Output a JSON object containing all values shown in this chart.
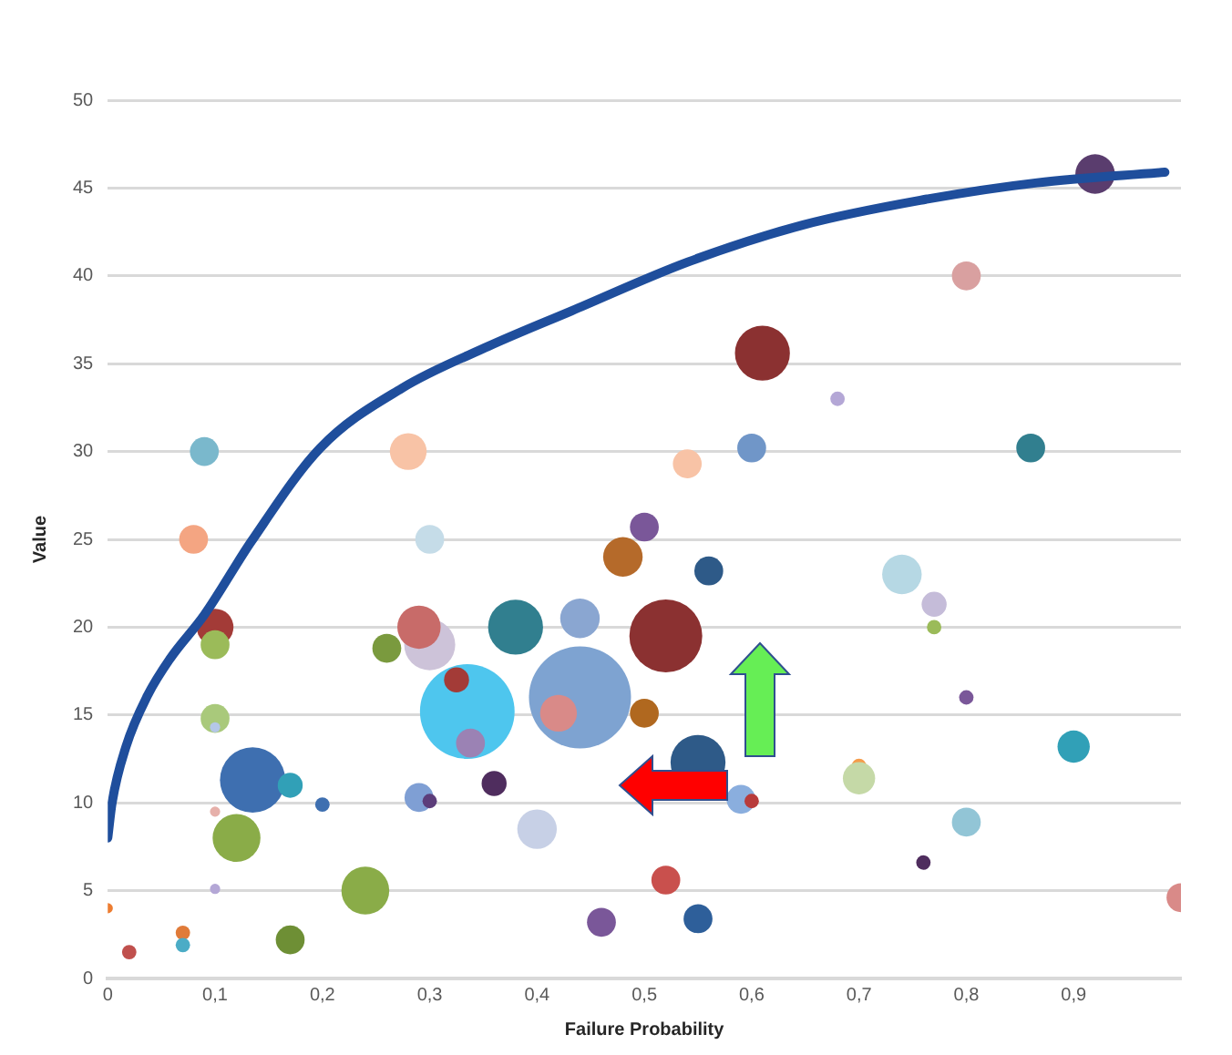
{
  "chart_data": {
    "type": "bubble",
    "xlabel": "Failure Probability",
    "ylabel": "Value",
    "xlim": [
      0,
      1
    ],
    "ylim": [
      0,
      50
    ],
    "xticks": [
      0,
      {
        "value": 0.1,
        "label": "0,1"
      },
      {
        "value": 0.2,
        "label": "0,2"
      },
      {
        "value": 0.3,
        "label": "0,3"
      },
      {
        "value": 0.4,
        "label": "0,4"
      },
      {
        "value": 0.5,
        "label": "0,5"
      },
      {
        "value": 0.6,
        "label": "0,6"
      },
      {
        "value": 0.7,
        "label": "0,7"
      },
      {
        "value": 0.8,
        "label": "0,8"
      },
      {
        "value": 0.9,
        "label": "0,9"
      }
    ],
    "yticks": [
      0,
      5,
      10,
      15,
      20,
      25,
      30,
      35,
      40,
      45,
      50
    ],
    "grid": "y",
    "legend": false,
    "series": [
      {
        "type": "bubble",
        "x": [
          0,
          0.02,
          0.07,
          0.07,
          0.08,
          0.09,
          0.1,
          0.1,
          0.1,
          0.1,
          0.1,
          0.1,
          0.135,
          0.12,
          0.17,
          0.2,
          0.17,
          0.24,
          0.26,
          0.28,
          0.3,
          0.3,
          0.29,
          0.335,
          0.325,
          0.338,
          0.29,
          0.3,
          0.36,
          0.38,
          0.4,
          0.44,
          0.42,
          0.44,
          0.48,
          0.5,
          0.5,
          0.52,
          0.56,
          0.55,
          0.52,
          0.46,
          0.55,
          0.59,
          0.6,
          0.54,
          0.6,
          0.61,
          0.68,
          0.8,
          0.92,
          0.86,
          0.74,
          0.77,
          0.77,
          0.8,
          0.9,
          0.7,
          0.7,
          0.8,
          0.76,
          1.0
        ],
        "values": [
          4,
          1.5,
          2.6,
          1.9,
          25,
          30,
          20,
          19,
          14.8,
          14.3,
          9.5,
          5.1,
          11.3,
          8,
          11,
          9.9,
          2.2,
          5,
          18.8,
          30,
          25,
          19,
          20,
          15.2,
          17,
          13.4,
          10.3,
          10.1,
          11.1,
          20,
          8.5,
          16,
          15.1,
          20.5,
          24,
          25.7,
          15.1,
          19.5,
          23.2,
          12.3,
          5.6,
          3.2,
          3.4,
          10.2,
          10.1,
          29.3,
          30.2,
          35.6,
          33,
          40,
          45.8,
          30.2,
          23,
          21.3,
          20,
          16,
          13.2,
          12.1,
          11.4,
          8.9,
          6.6,
          4.6
        ],
        "sizes": [
          0.01,
          0.02,
          0.02,
          0.02,
          0.08,
          0.08,
          0.13,
          0.08,
          0.08,
          0.01,
          0.01,
          0.01,
          0.41,
          0.22,
          0.06,
          0.02,
          0.08,
          0.22,
          0.08,
          0.13,
          0.08,
          0.25,
          0.18,
          0.86,
          0.06,
          0.08,
          0.08,
          0.02,
          0.06,
          0.29,
          0.15,
          1,
          0.13,
          0.15,
          0.15,
          0.08,
          0.08,
          0.51,
          0.08,
          0.29,
          0.08,
          0.08,
          0.08,
          0.08,
          0.02,
          0.08,
          0.08,
          0.29,
          0.02,
          0.08,
          0.15,
          0.08,
          0.15,
          0.06,
          0.02,
          0.02,
          0.1,
          0.02,
          0.1,
          0.08,
          0.02,
          0.08
        ],
        "colors": [
          "#ed7d31",
          "#c0504d",
          "#e07b39",
          "#4bacc6",
          "#f4a582",
          "#7ab8cc",
          "#a33b37",
          "#9bbb59",
          "#a9c97b",
          "#b4c7e7",
          "#e6b0aa",
          "#b4a7d6",
          "#3e6fb0",
          "#8aac48",
          "#31a0b7",
          "#3e6fb0",
          "#6e8f35",
          "#8aac48",
          "#7a9a3e",
          "#f8c3a6",
          "#c5dce8",
          "#cdc3d9",
          "#c86b69",
          "#4ec6ee",
          "#a33b37",
          "#9b82b4",
          "#7f9fd4",
          "#5c3d7a",
          "#4f2d5e",
          "#317f8f",
          "#c7d0e6",
          "#7ea3d1",
          "#d98a88",
          "#8aa6d1",
          "#b56a2a",
          "#7a5799",
          "#b0681f",
          "#8b3131",
          "#2e5a88",
          "#2e5a88",
          "#c9504d",
          "#7a5799",
          "#2e5f9a",
          "#8aaede",
          "#b83b3b",
          "#f8c3a6",
          "#7096c8",
          "#8b3131",
          "#b4a7d6",
          "#d9a0a0",
          "#5a3d6e",
          "#317f8f",
          "#b6d8e4",
          "#c5bcd9",
          "#9bbb59",
          "#7a5799",
          "#31a0b7",
          "#f59c4a",
          "#c5d9a7",
          "#92c5d6",
          "#4f2d5e",
          "#d98a88"
        ]
      },
      {
        "type": "line",
        "color": "#1f4e9c",
        "line_style": "solid",
        "marker": "none",
        "x": [
          0,
          0.004,
          0.017,
          0.037,
          0.058,
          0.09,
          0.134,
          0.198,
          0.274,
          0.355,
          0.432,
          0.541,
          0.648,
          0.757,
          0.866,
          0.985
        ],
        "values": [
          8,
          10,
          13.2,
          16.1,
          18.2,
          20.7,
          24.9,
          30.2,
          33.6,
          36,
          38,
          40.8,
          42.9,
          44.3,
          45.3,
          45.9
        ]
      }
    ]
  }
}
